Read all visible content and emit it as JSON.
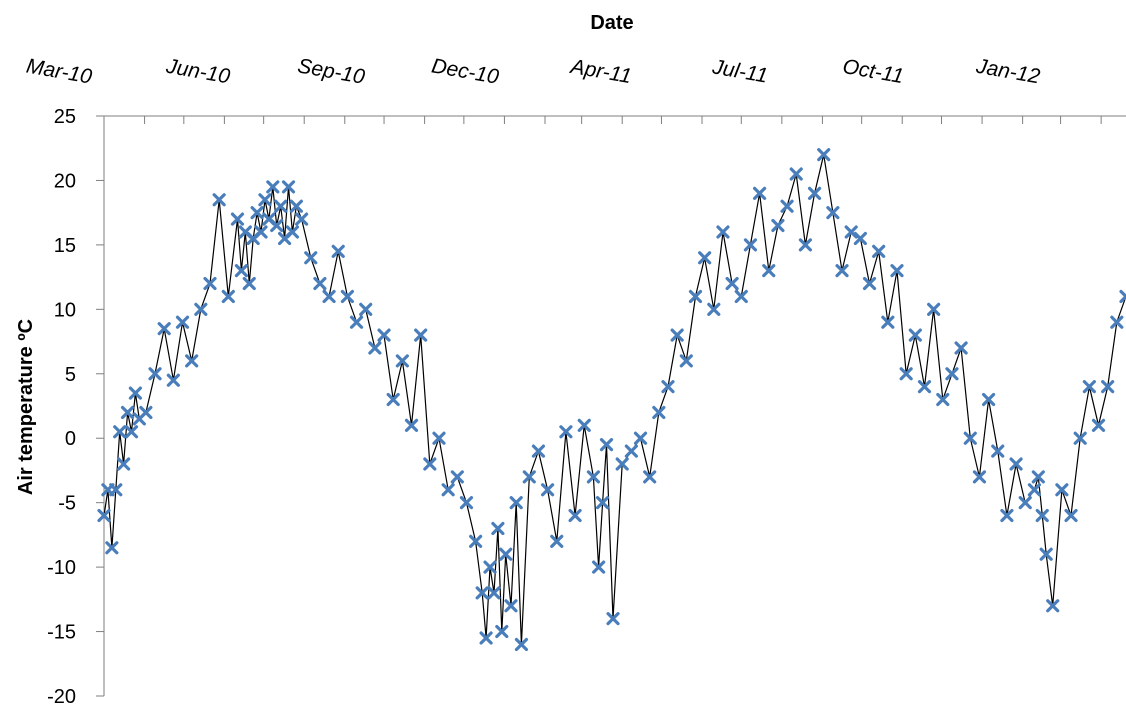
{
  "chart_data": {
    "type": "line",
    "title": "",
    "xlabel": "Date",
    "ylabel": "Air temperature ºC",
    "xlabel_position": "top",
    "ylim": [
      -20,
      25
    ],
    "yticks": [
      25,
      20,
      15,
      10,
      5,
      0,
      -5,
      -10,
      -15,
      -20
    ],
    "x_range": [
      "2010-03-01",
      "2012-04-20"
    ],
    "x_tick_labels": [
      "Mar-10",
      "Jun-10",
      "Sep-10",
      "Dec-10",
      "Apr-11",
      "Jul-11",
      "Oct-11",
      "Jan-12"
    ],
    "grid": false,
    "legend": "none",
    "series": [
      {
        "style": "line+markers",
        "line_color": "#000000",
        "marker": "x",
        "marker_color": "#4a7ebb",
        "x": [
          "2010-03-01",
          "2010-03-04",
          "2010-03-07",
          "2010-03-10",
          "2010-03-13",
          "2010-03-16",
          "2010-03-19",
          "2010-03-22",
          "2010-03-25",
          "2010-03-28",
          "2010-04-02",
          "2010-04-09",
          "2010-04-16",
          "2010-04-23",
          "2010-04-30",
          "2010-05-07",
          "2010-05-14",
          "2010-05-21",
          "2010-05-28",
          "2010-06-04",
          "2010-06-11",
          "2010-06-14",
          "2010-06-17",
          "2010-06-20",
          "2010-06-23",
          "2010-06-26",
          "2010-06-29",
          "2010-07-02",
          "2010-07-05",
          "2010-07-08",
          "2010-07-11",
          "2010-07-14",
          "2010-07-17",
          "2010-07-20",
          "2010-07-23",
          "2010-07-26",
          "2010-07-30",
          "2010-08-06",
          "2010-08-13",
          "2010-08-20",
          "2010-08-27",
          "2010-09-03",
          "2010-09-10",
          "2010-09-17",
          "2010-09-24",
          "2010-10-01",
          "2010-10-08",
          "2010-10-15",
          "2010-10-22",
          "2010-10-29",
          "2010-11-05",
          "2010-11-12",
          "2010-11-19",
          "2010-11-26",
          "2010-12-03",
          "2010-12-10",
          "2010-12-15",
          "2010-12-18",
          "2010-12-21",
          "2010-12-24",
          "2010-12-27",
          "2010-12-30",
          "2011-01-02",
          "2011-01-06",
          "2011-01-10",
          "2011-01-14",
          "2011-01-20",
          "2011-01-27",
          "2011-02-03",
          "2011-02-10",
          "2011-02-17",
          "2011-02-24",
          "2011-03-03",
          "2011-03-10",
          "2011-03-14",
          "2011-03-17",
          "2011-03-20",
          "2011-03-25",
          "2011-04-01",
          "2011-04-08",
          "2011-04-15",
          "2011-04-22",
          "2011-04-29",
          "2011-05-06",
          "2011-05-13",
          "2011-05-20",
          "2011-05-27",
          "2011-06-03",
          "2011-06-10",
          "2011-06-17",
          "2011-06-24",
          "2011-07-01",
          "2011-07-08",
          "2011-07-15",
          "2011-07-22",
          "2011-07-29",
          "2011-08-05",
          "2011-08-12",
          "2011-08-19",
          "2011-08-26",
          "2011-09-02",
          "2011-09-09",
          "2011-09-16",
          "2011-09-23",
          "2011-09-30",
          "2011-10-07",
          "2011-10-14",
          "2011-10-21",
          "2011-10-28",
          "2011-11-04",
          "2011-11-11",
          "2011-11-18",
          "2011-11-25",
          "2011-12-02",
          "2011-12-09",
          "2011-12-16",
          "2011-12-23",
          "2011-12-30",
          "2012-01-06",
          "2012-01-13",
          "2012-01-20",
          "2012-01-27",
          "2012-02-03",
          "2012-02-10",
          "2012-02-13",
          "2012-02-16",
          "2012-02-19",
          "2012-02-24",
          "2012-03-02",
          "2012-03-09",
          "2012-03-16",
          "2012-03-23",
          "2012-03-30",
          "2012-04-06",
          "2012-04-13",
          "2012-04-20"
        ],
        "y": [
          -6.0,
          -4.0,
          -8.5,
          -4.0,
          0.5,
          -2.0,
          2.0,
          0.5,
          3.5,
          1.5,
          2.0,
          5.0,
          8.5,
          4.5,
          9.0,
          6.0,
          10.0,
          12.0,
          18.5,
          11.0,
          17.0,
          13.0,
          16.0,
          12.0,
          15.5,
          17.5,
          16.0,
          18.5,
          17.0,
          19.5,
          16.5,
          18.0,
          15.5,
          19.5,
          16.0,
          18.0,
          17.0,
          14.0,
          12.0,
          11.0,
          14.5,
          11.0,
          9.0,
          10.0,
          7.0,
          8.0,
          3.0,
          6.0,
          1.0,
          8.0,
          -2.0,
          0.0,
          -4.0,
          -3.0,
          -5.0,
          -8.0,
          -12.0,
          -15.5,
          -10.0,
          -12.0,
          -7.0,
          -15.0,
          -9.0,
          -13.0,
          -5.0,
          -16.0,
          -3.0,
          -1.0,
          -4.0,
          -8.0,
          0.5,
          -6.0,
          1.0,
          -3.0,
          -10.0,
          -5.0,
          -0.5,
          -14.0,
          -2.0,
          -1.0,
          0.0,
          -3.0,
          2.0,
          4.0,
          8.0,
          6.0,
          11.0,
          14.0,
          10.0,
          16.0,
          12.0,
          11.0,
          15.0,
          19.0,
          13.0,
          16.5,
          18.0,
          20.5,
          15.0,
          19.0,
          22.0,
          17.5,
          13.0,
          16.0,
          15.5,
          12.0,
          14.5,
          9.0,
          13.0,
          5.0,
          8.0,
          4.0,
          10.0,
          3.0,
          5.0,
          7.0,
          0.0,
          -3.0,
          3.0,
          -1.0,
          -6.0,
          -2.0,
          -5.0,
          -4.0,
          -3.0,
          -6.0,
          -9.0,
          -13.0,
          -4.0,
          -6.0,
          0.0,
          4.0,
          1.0,
          4.0,
          9.0,
          11.0
        ]
      }
    ]
  }
}
